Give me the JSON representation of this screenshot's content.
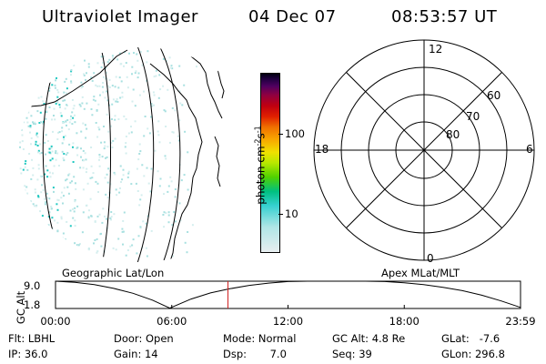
{
  "header": {
    "title": "Ultraviolet Imager",
    "date": "04 Dec 07",
    "time": "08:53:57 UT"
  },
  "colorbar": {
    "unit_label": "photon cm",
    "unit_exp1": "-2",
    "unit_s": "s",
    "unit_exp2": "-1",
    "ticks": [
      {
        "label": "100",
        "value": 100
      },
      {
        "label": "10",
        "value": 10
      }
    ],
    "colors": [
      "#e8eef0",
      "#b0e6e6",
      "#36d0d0",
      "#00c080",
      "#50d200",
      "#b8e800",
      "#f0e000",
      "#f8a800",
      "#f07000",
      "#e02000",
      "#c00010",
      "#900040",
      "#500060",
      "#200040",
      "#000010"
    ]
  },
  "polar": {
    "labels": [
      {
        "name": "mlt-12",
        "text": "12"
      },
      {
        "name": "mlt-18",
        "text": "18"
      },
      {
        "name": "mlt-6",
        "text": "6"
      },
      {
        "name": "mlt-0",
        "text": "0"
      },
      {
        "name": "mlat-60",
        "text": "60"
      },
      {
        "name": "mlat-70",
        "text": "70"
      },
      {
        "name": "mlat-80",
        "text": "80"
      }
    ]
  },
  "panels": {
    "left_label": "Geographic Lat/Lon",
    "right_label": "Apex MLat/MLT"
  },
  "altitude_plot": {
    "ylabel": "GC Alt",
    "yticks": [
      "9.0",
      "1.8"
    ],
    "xticks": [
      "00:00",
      "06:00",
      "12:00",
      "18:00",
      "23:59"
    ],
    "current_time_marker": "08:54",
    "chart_data": {
      "type": "line",
      "xlabel": "",
      "ylabel": "GC Alt",
      "xlim": [
        0,
        24
      ],
      "ylim": [
        1.8,
        9.0
      ],
      "x": [
        0,
        1,
        2,
        3,
        4,
        5,
        5.9,
        7,
        8,
        9,
        10,
        11,
        12,
        13,
        14,
        15,
        16,
        17,
        18,
        19,
        20,
        21,
        22,
        23,
        24
      ],
      "y": [
        9.0,
        8.7,
        8.1,
        7.1,
        5.8,
        4.0,
        1.9,
        4.3,
        5.9,
        7.0,
        7.9,
        8.5,
        8.9,
        9.1,
        9.2,
        9.2,
        9.1,
        8.9,
        8.6,
        8.1,
        7.4,
        6.5,
        5.3,
        3.8,
        2.1
      ]
    }
  },
  "status": {
    "row1": {
      "flt": "Flt: LBHL",
      "door": "Door: Open",
      "mode": "Mode: Normal",
      "gcalt": "GC Alt: 4.8 Re",
      "glat": "GLat:   -7.6"
    },
    "row2": {
      "ip": "IP: 36.0",
      "gain": "Gain: 14",
      "dsp": "Dsp:       7.0",
      "seq": "Seq: 39",
      "glon": "GLon: 296.8"
    }
  }
}
